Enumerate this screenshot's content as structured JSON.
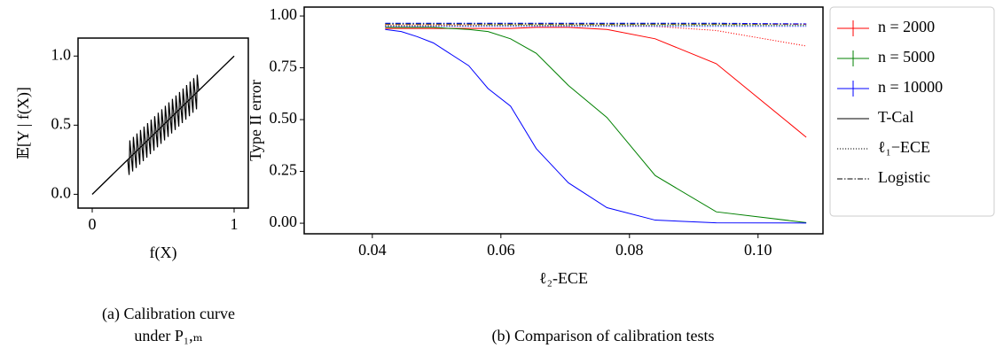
{
  "chart_data": [
    {
      "type": "line",
      "xlabel": "f(X)",
      "ylabel": "𝔼[Y | f(X)]",
      "xlim": [
        -0.1,
        1.1
      ],
      "ylim": [
        -0.1,
        1.13
      ],
      "xticks": [
        0,
        1
      ],
      "yticks": [
        {
          "value": 0,
          "label": "0.0"
        },
        {
          "value": 0.5,
          "label": "0.5"
        },
        {
          "value": 1,
          "label": "1.0"
        }
      ],
      "series": [
        {
          "color": "#000000",
          "x": [
            0,
            1
          ],
          "values": [
            0,
            1
          ]
        },
        {
          "color": "#000000",
          "x": [
            0,
            0.25,
            0.26,
            0.265,
            0.285,
            0.29,
            0.31,
            0.315,
            0.335,
            0.34,
            0.36,
            0.365,
            0.385,
            0.39,
            0.41,
            0.415,
            0.435,
            0.44,
            0.46,
            0.465,
            0.485,
            0.49,
            0.51,
            0.515,
            0.535,
            0.54,
            0.56,
            0.565,
            0.585,
            0.59,
            0.61,
            0.615,
            0.635,
            0.64,
            0.66,
            0.665,
            0.685,
            0.69,
            0.71,
            0.715,
            0.735,
            0.74,
            0.75,
            1
          ],
          "values": [
            0,
            0.25,
            0.14,
            0.39,
            0.165,
            0.415,
            0.19,
            0.44,
            0.215,
            0.465,
            0.24,
            0.49,
            0.265,
            0.515,
            0.29,
            0.54,
            0.315,
            0.565,
            0.34,
            0.59,
            0.365,
            0.615,
            0.39,
            0.64,
            0.415,
            0.665,
            0.44,
            0.69,
            0.465,
            0.715,
            0.49,
            0.74,
            0.515,
            0.765,
            0.54,
            0.79,
            0.565,
            0.815,
            0.59,
            0.84,
            0.615,
            0.865,
            0.75,
            1
          ]
        }
      ]
    },
    {
      "type": "line",
      "xlabel": "ℓ₂-ECE",
      "ylabel": "Type II error",
      "xlim": [
        0.0294,
        0.1101
      ],
      "ylim": [
        -0.051,
        1.043
      ],
      "xticks": [
        0.04,
        0.06,
        0.08,
        {
          "value": 0.1,
          "label": "0.10"
        }
      ],
      "yticks": [
        {
          "value": 0,
          "label": "0.00"
        },
        {
          "value": 0.25,
          "label": "0.25"
        },
        {
          "value": 0.5,
          "label": "0.50"
        },
        {
          "value": 0.75,
          "label": "0.75"
        },
        {
          "value": 1,
          "label": "1.00"
        }
      ],
      "x": [
        0.042,
        0.0445,
        0.047,
        0.0495,
        0.052,
        0.055,
        0.058,
        0.0615,
        0.0655,
        0.0705,
        0.0765,
        0.084,
        0.0935,
        0.1075
      ],
      "methods": [
        {
          "name": "T-Cal",
          "dash": "solid"
        },
        {
          "name": "ℓ₁−ECE",
          "dash": "dotted"
        },
        {
          "name": "Logistic",
          "dash": "dashdot"
        }
      ],
      "series": [
        {
          "name": "n = 2000",
          "color": "#ff0000",
          "values": [
            [
              0.94,
              0.94,
              0.94,
              0.94,
              0.94,
              0.94,
              0.94,
              0.94,
              0.945,
              0.945,
              0.935,
              0.89,
              0.77,
              0.415
            ],
            [
              0.955,
              0.955,
              0.955,
              0.955,
              0.955,
              0.955,
              0.955,
              0.955,
              0.955,
              0.955,
              0.955,
              0.95,
              0.93,
              0.855
            ],
            [
              0.96,
              0.96,
              0.96,
              0.96,
              0.96,
              0.96,
              0.96,
              0.96,
              0.96,
              0.96,
              0.96,
              0.96,
              0.96,
              0.96
            ]
          ]
        },
        {
          "name": "n = 5000",
          "color": "#008000",
          "values": [
            [
              0.945,
              0.945,
              0.945,
              0.945,
              0.94,
              0.935,
              0.925,
              0.89,
              0.82,
              0.665,
              0.51,
              0.23,
              0.055,
              0.003
            ],
            [
              0.952,
              0.952,
              0.952,
              0.952,
              0.952,
              0.952,
              0.955,
              0.955,
              0.955,
              0.955,
              0.955,
              0.955,
              0.955,
              0.955
            ],
            [
              0.962,
              0.962,
              0.962,
              0.962,
              0.962,
              0.962,
              0.962,
              0.962,
              0.962,
              0.962,
              0.962,
              0.962,
              0.962,
              0.962
            ]
          ]
        },
        {
          "name": "n = 10000",
          "color": "#0000ff",
          "values": [
            [
              0.935,
              0.925,
              0.9,
              0.87,
              0.82,
              0.76,
              0.65,
              0.565,
              0.36,
              0.195,
              0.075,
              0.015,
              0.002,
              0.001
            ],
            [
              0.95,
              0.95,
              0.95,
              0.95,
              0.95,
              0.95,
              0.95,
              0.95,
              0.95,
              0.95,
              0.95,
              0.95,
              0.95,
              0.95
            ],
            [
              0.965,
              0.965,
              0.965,
              0.965,
              0.965,
              0.965,
              0.965,
              0.965,
              0.965,
              0.965,
              0.965,
              0.965,
              0.965,
              0.962
            ]
          ]
        }
      ]
    }
  ],
  "captions": [
    [
      "(a) Calibration curve",
      "under P₁,ₘ"
    ],
    [
      "(b) Comparison of calibration tests"
    ]
  ]
}
